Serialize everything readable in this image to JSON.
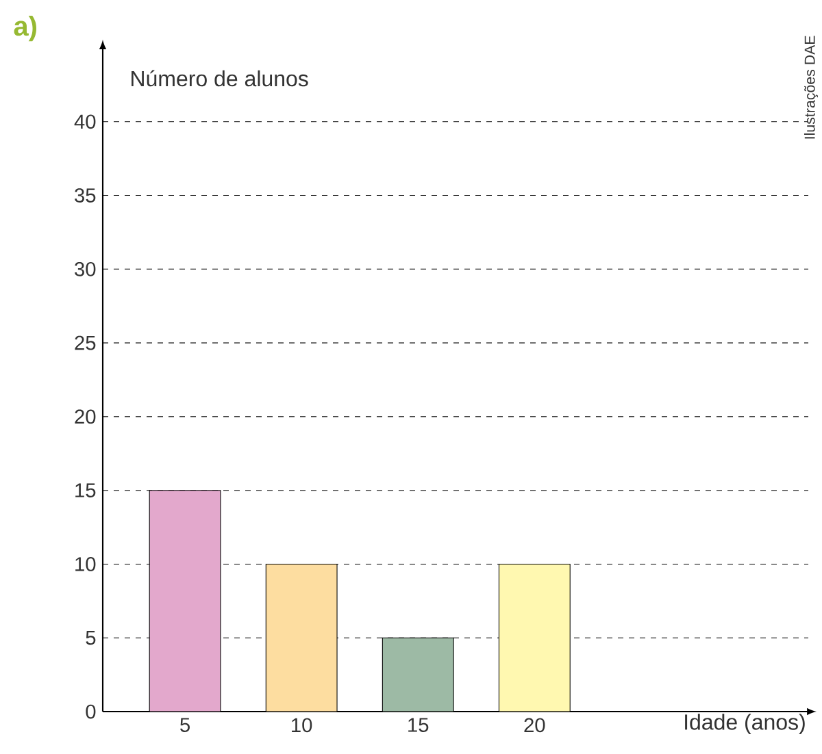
{
  "chart_data": {
    "type": "bar",
    "categories": [
      "5",
      "10",
      "15",
      "20"
    ],
    "values": [
      15,
      10,
      5,
      10
    ],
    "colors": [
      "#e3a8cc",
      "#fddda0",
      "#9dbaa5",
      "#fff8b0"
    ],
    "xlabel": "Idade (anos)",
    "ylabel": "Número de alunos",
    "ylim": [
      0,
      45
    ],
    "yticks": [
      0,
      5,
      10,
      15,
      20,
      25,
      30,
      35,
      40
    ],
    "grid": "y",
    "annotations": [
      "a)",
      "Ilustrações DAE"
    ]
  }
}
